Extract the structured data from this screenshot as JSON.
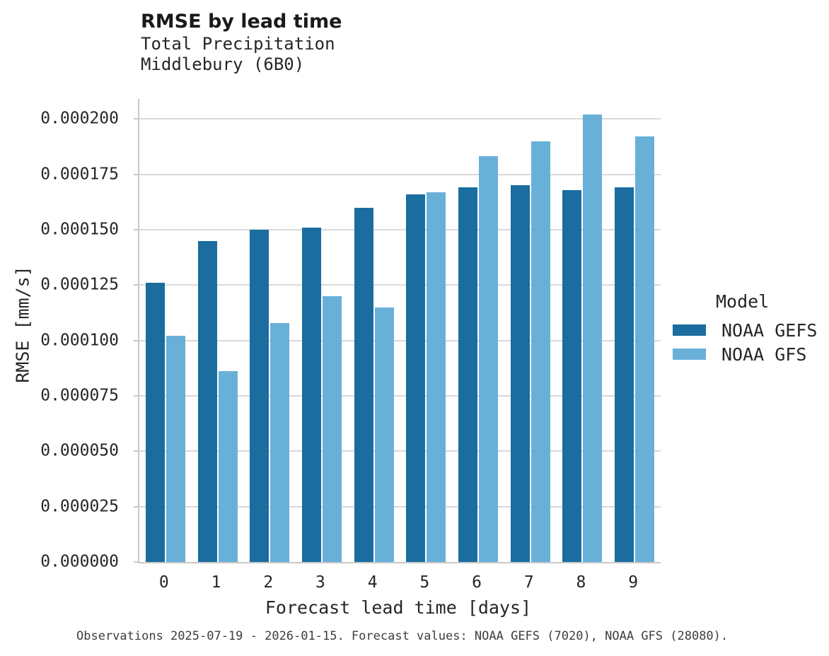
{
  "title": "RMSE by lead time",
  "subtitle_line1": "Total Precipitation",
  "subtitle_line2": "Middlebury (6B0)",
  "caption": "Observations 2025-07-19 - 2026-01-15. Forecast values: NOAA GEFS (7020), NOAA GFS (28080).",
  "colors": {
    "gefs": "#1A6D9E",
    "gfs": "#69B0D9",
    "grid": "#D9D9D9",
    "spine": "#C9C9C9",
    "text": "#262626"
  },
  "legend": {
    "title": "Model",
    "entries": [
      {
        "label": "NOAA GEFS",
        "color": "#1A6D9E"
      },
      {
        "label": "NOAA GFS",
        "color": "#69B0D9"
      }
    ]
  },
  "chart_data": {
    "type": "bar",
    "title": "RMSE by lead time",
    "subtitle": [
      "Total Precipitation",
      "Middlebury (6B0)"
    ],
    "xlabel": "Forecast lead time [days]",
    "ylabel": "RMSE [mm/s]",
    "categories": [
      0,
      1,
      2,
      3,
      4,
      5,
      6,
      7,
      8,
      9
    ],
    "series": [
      {
        "name": "NOAA GEFS",
        "color": "#1A6D9E",
        "values": [
          0.000126,
          0.000145,
          0.00015,
          0.000151,
          0.00016,
          0.000166,
          0.000169,
          0.00017,
          0.000168,
          0.000169
        ]
      },
      {
        "name": "NOAA GFS",
        "color": "#69B0D9",
        "values": [
          0.000102,
          8.6e-05,
          0.000108,
          0.00012,
          0.000115,
          0.000167,
          0.000183,
          0.00019,
          0.000202,
          0.000192
        ]
      }
    ],
    "ylim": [
      0,
      0.000209
    ],
    "ytick_step": 2.5e-05,
    "ytick_max": 0.0002,
    "ytick_format_decimals": 6,
    "grid": true,
    "legend_position": "right",
    "legend_title": "Model"
  }
}
